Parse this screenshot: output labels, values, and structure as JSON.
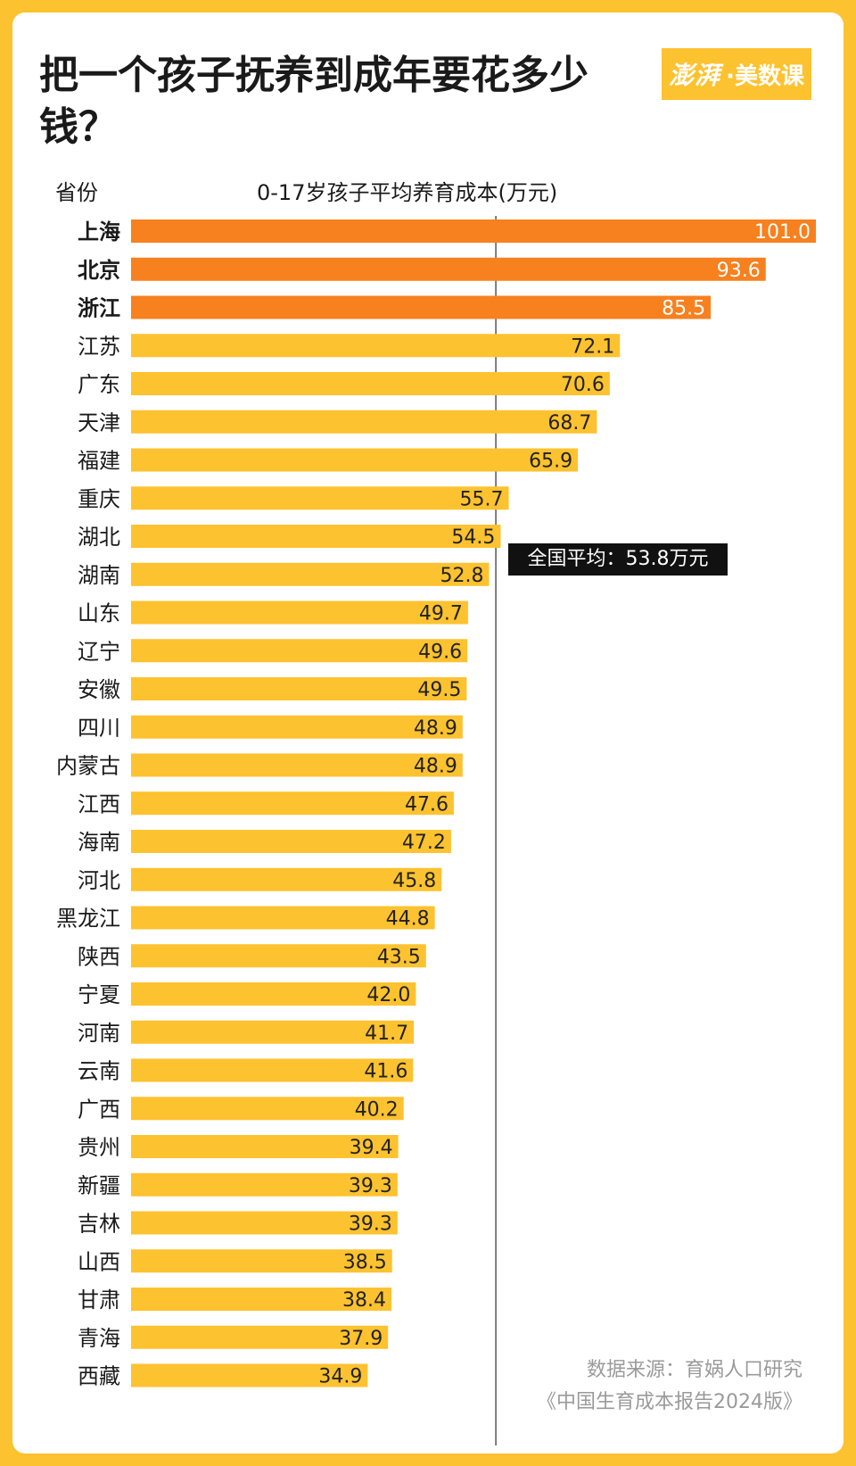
{
  "title": "把一个孩子抚养到成年要花多少钱？",
  "logo": {
    "brand": "澎湃",
    "sub_brand": "·美数课"
  },
  "colors": {
    "highlight": "#F7801F",
    "normal": "#FDC22F",
    "background": "#FDC22F",
    "avg_line": "#555555",
    "avg_label_bg": "#111111"
  },
  "chart_data": {
    "type": "bar",
    "orientation": "horizontal",
    "category_header": "省份",
    "value_header": "0-17岁孩子平均养育成本(万元)",
    "unit": "万元",
    "categories": [
      "上海",
      "北京",
      "浙江",
      "江苏",
      "广东",
      "天津",
      "福建",
      "重庆",
      "湖北",
      "湖南",
      "山东",
      "辽宁",
      "安徽",
      "四川",
      "内蒙古",
      "江西",
      "海南",
      "河北",
      "黑龙江",
      "陕西",
      "宁夏",
      "河南",
      "云南",
      "广西",
      "贵州",
      "新疆",
      "吉林",
      "山西",
      "甘肃",
      "青海",
      "西藏"
    ],
    "values": [
      "101.0",
      "93.6",
      "85.5",
      "72.1",
      "70.6",
      "68.7",
      "65.9",
      "55.7",
      "54.5",
      "52.8",
      "49.7",
      "49.6",
      "49.5",
      "48.9",
      "48.9",
      "47.6",
      "47.2",
      "45.8",
      "44.8",
      "43.5",
      "42.0",
      "41.7",
      "41.6",
      "40.2",
      "39.4",
      "39.3",
      "39.3",
      "38.5",
      "38.4",
      "37.9",
      "34.9"
    ],
    "highlighted": [
      "上海",
      "北京",
      "浙江"
    ],
    "reference_line": {
      "value": 53.8,
      "label": "全国平均：53.8万元"
    },
    "xlim": [
      0,
      101.0
    ]
  },
  "source": {
    "line1": "数据来源：育娲人口研究",
    "line2": "《中国生育成本报告2024版》"
  }
}
